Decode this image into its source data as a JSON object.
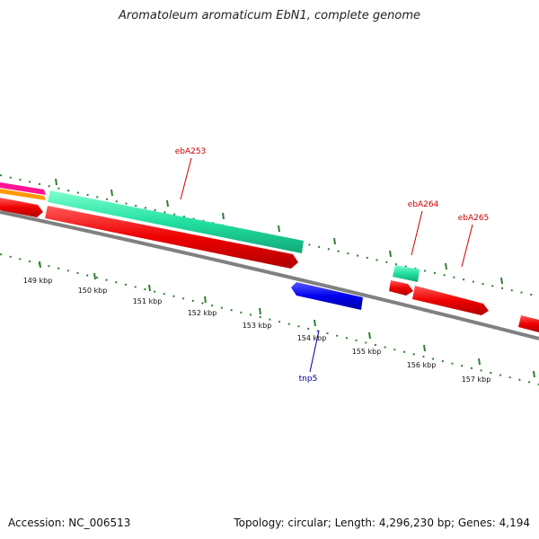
{
  "title": "Aromatoleum aromaticum EbN1, complete genome",
  "footer": {
    "accession": "Accession: NC_006513",
    "stats": "Topology: circular; Length: 4,296,230 bp; Genes: 4,194"
  },
  "scale": {
    "unit": "kbp",
    "tick_labels": [
      "149 kbp",
      "150 kbp",
      "151 kbp",
      "152 kbp",
      "153 kbp",
      "154 kbp",
      "155 kbp",
      "156 kbp",
      "157 kbp"
    ]
  },
  "gene_labels": [
    {
      "name": "ebA253",
      "color": "#cc0000"
    },
    {
      "name": "ebA264",
      "color": "#cc0000"
    },
    {
      "name": "ebA265",
      "color": "#cc0000"
    },
    {
      "name": "tnp5",
      "color": "#0000aa"
    }
  ],
  "colors": {
    "backbone": "#808080",
    "tick": "#2f7f2f",
    "cds": "#e00000",
    "rna": "#22e0a0",
    "mobile": "#0000ee",
    "misc_magenta": "#ff1493",
    "misc_orange": "#ff9900"
  }
}
